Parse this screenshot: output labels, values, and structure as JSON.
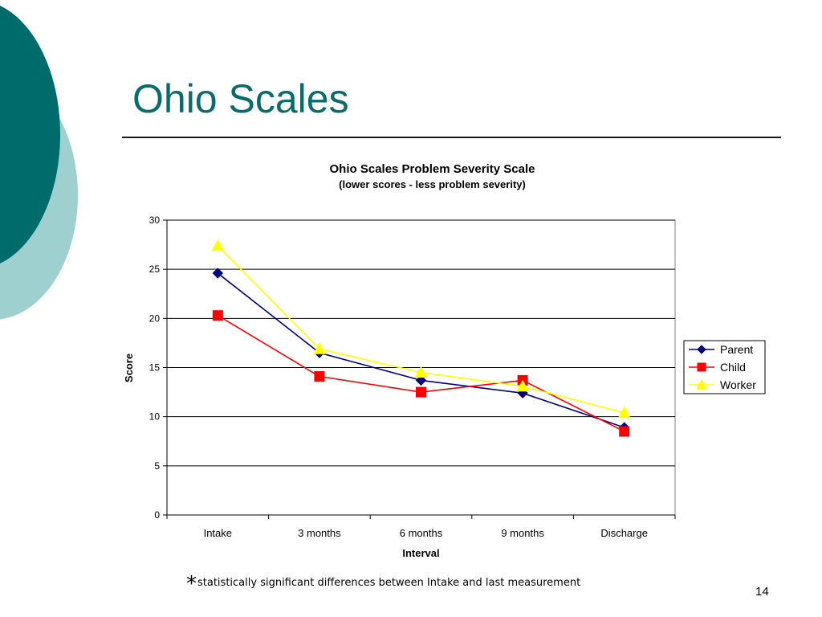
{
  "slide": {
    "title": "Ohio Scales",
    "footnote_star": "*",
    "footnote_text": "statistically significant differences between Intake and last measurement",
    "page_number": "14"
  },
  "colors": {
    "deco_dark": "#006b6b",
    "deco_light": "#9fd0d0",
    "title": "#0a6b6b"
  },
  "chart_data": {
    "type": "line",
    "title": "Ohio Scales Problem Severity Scale",
    "subtitle": "(lower scores - less problem severity)",
    "xlabel": "Interval",
    "ylabel": "Score",
    "categories": [
      "Intake",
      "3 months",
      "6 months",
      "9 months",
      "Discharge"
    ],
    "ylim": [
      0,
      30
    ],
    "yticks": [
      0,
      5,
      10,
      15,
      20,
      25,
      30
    ],
    "grid": true,
    "legend_position": "right",
    "series": [
      {
        "name": "Parent",
        "color": "#000080",
        "marker": "diamond",
        "values": [
          24.6,
          16.5,
          13.7,
          12.4,
          8.9
        ]
      },
      {
        "name": "Child",
        "color": "#ff0000",
        "marker": "square",
        "values": [
          20.3,
          14.1,
          12.5,
          13.7,
          8.5
        ]
      },
      {
        "name": "Worker",
        "color": "#ffff00",
        "marker": "triangle",
        "values": [
          27.4,
          16.9,
          14.5,
          13.1,
          10.4
        ]
      }
    ]
  }
}
